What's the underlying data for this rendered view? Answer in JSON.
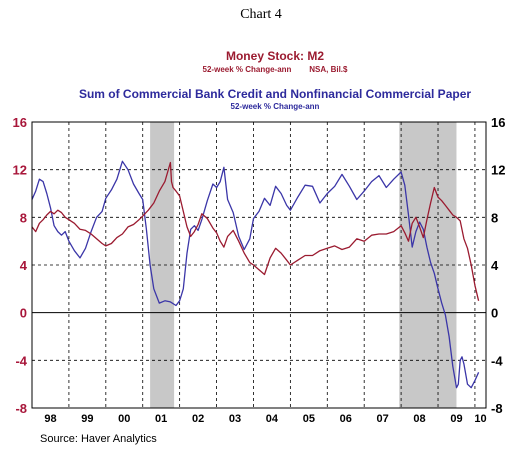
{
  "header": {
    "chart_number": "Chart 4",
    "series1_title": "Money Stock: M2",
    "series1_subtitle": "52-week % Change-ann        NSA, Bil.$",
    "series2_title": "Sum of Commercial Bank Credit and Nonfinancial Commercial Paper",
    "series2_subtitle": "52-week % Change-ann"
  },
  "footer": {
    "source": "Source: Haver Analytics"
  },
  "colors": {
    "m2": "#9b1b30",
    "credit": "#3b36a8",
    "recession": "#c8c8c8",
    "grid": "#000000"
  },
  "chart_data": {
    "type": "line",
    "xlabel": "",
    "ylabel": "",
    "ylim": [
      -8,
      16
    ],
    "xlim": [
      1998.0,
      2010.3
    ],
    "y_ticks_left": [
      "16",
      "12",
      "8",
      "4",
      "0",
      "-4",
      "-8"
    ],
    "y_ticks_right": [
      "16",
      "12",
      "8",
      "4",
      "0",
      "-4",
      "-8"
    ],
    "y_tick_values": [
      16,
      12,
      8,
      4,
      0,
      -4,
      -8
    ],
    "x_tick_labels": [
      "98",
      "99",
      "00",
      "01",
      "02",
      "03",
      "04",
      "05",
      "06",
      "07",
      "08",
      "09",
      "10"
    ],
    "grid": "vertical dashed at year starts, horizontal dashed at 4-unit steps",
    "zero_line": true,
    "recessions": [
      {
        "start": 2001.2,
        "end": 2001.85
      },
      {
        "start": 2007.95,
        "end": 2009.5
      }
    ],
    "series": [
      {
        "name": "Money Stock: M2",
        "axis": "left",
        "x": [
          1998.0,
          1998.1,
          1998.2,
          1998.3,
          1998.4,
          1998.5,
          1998.6,
          1998.7,
          1998.8,
          1998.9,
          1999.0,
          1999.15,
          1999.3,
          1999.45,
          1999.6,
          1999.75,
          1999.9,
          2000.0,
          2000.15,
          2000.3,
          2000.45,
          2000.6,
          2000.75,
          2000.9,
          2001.0,
          2001.15,
          2001.3,
          2001.45,
          2001.6,
          2001.75,
          2001.78,
          2001.82,
          2001.9,
          2002.0,
          2002.1,
          2002.2,
          2002.3,
          2002.4,
          2002.5,
          2002.6,
          2002.75,
          2002.9,
          2003.0,
          2003.1,
          2003.2,
          2003.3,
          2003.45,
          2003.6,
          2003.75,
          2003.9,
          2004.0,
          2004.15,
          2004.3,
          2004.45,
          2004.6,
          2004.75,
          2004.9,
          2005.0,
          2005.2,
          2005.4,
          2005.6,
          2005.8,
          2006.0,
          2006.2,
          2006.4,
          2006.6,
          2006.8,
          2007.0,
          2007.2,
          2007.4,
          2007.6,
          2007.8,
          2008.0,
          2008.1,
          2008.2,
          2008.3,
          2008.4,
          2008.5,
          2008.6,
          2008.7,
          2008.8,
          2008.9,
          2009.0,
          2009.1,
          2009.2,
          2009.3,
          2009.4,
          2009.5,
          2009.6,
          2009.7,
          2009.8,
          2009.9,
          2010.0,
          2010.1
        ],
        "values": [
          7.2,
          6.8,
          7.5,
          7.8,
          8.2,
          8.5,
          8.3,
          8.6,
          8.4,
          8.0,
          7.8,
          7.5,
          7.0,
          6.9,
          6.6,
          6.2,
          5.8,
          5.6,
          5.8,
          6.3,
          6.6,
          7.2,
          7.4,
          7.8,
          8.1,
          8.6,
          9.2,
          10.2,
          11.0,
          12.6,
          11.0,
          10.5,
          10.2,
          9.8,
          8.5,
          7.2,
          6.4,
          6.8,
          7.4,
          8.3,
          7.9,
          7.1,
          6.7,
          6.0,
          5.5,
          6.4,
          6.9,
          6.0,
          5.0,
          4.2,
          4.0,
          3.6,
          3.2,
          4.6,
          5.4,
          5.0,
          4.4,
          4.0,
          4.4,
          4.8,
          4.8,
          5.2,
          5.4,
          5.6,
          5.3,
          5.5,
          6.2,
          6.0,
          6.5,
          6.6,
          6.6,
          6.8,
          7.3,
          6.7,
          6.0,
          7.5,
          8.0,
          7.2,
          6.3,
          7.8,
          9.2,
          10.5,
          9.7,
          9.4,
          9.0,
          8.6,
          8.2,
          8.0,
          7.7,
          6.2,
          5.4,
          4.0,
          2.3,
          1.0
        ]
      },
      {
        "name": "Sum of Commercial Bank Credit and Nonfinancial Commercial Paper",
        "axis": "left",
        "x": [
          1998.0,
          1998.1,
          1998.2,
          1998.3,
          1998.4,
          1998.5,
          1998.6,
          1998.7,
          1998.8,
          1998.9,
          1999.0,
          1999.15,
          1999.3,
          1999.45,
          1999.6,
          1999.75,
          1999.9,
          2000.0,
          2000.15,
          2000.3,
          2000.45,
          2000.6,
          2000.75,
          2000.9,
          2001.0,
          2001.1,
          2001.2,
          2001.3,
          2001.45,
          2001.6,
          2001.75,
          2001.9,
          2002.0,
          2002.05,
          2002.1,
          2002.2,
          2002.3,
          2002.4,
          2002.5,
          2002.6,
          2002.75,
          2002.9,
          2003.0,
          2003.1,
          2003.2,
          2003.3,
          2003.45,
          2003.6,
          2003.75,
          2003.9,
          2004.0,
          2004.15,
          2004.3,
          2004.45,
          2004.6,
          2004.75,
          2004.9,
          2005.0,
          2005.2,
          2005.4,
          2005.6,
          2005.8,
          2006.0,
          2006.2,
          2006.4,
          2006.6,
          2006.8,
          2007.0,
          2007.2,
          2007.4,
          2007.6,
          2007.8,
          2008.0,
          2008.1,
          2008.2,
          2008.3,
          2008.4,
          2008.5,
          2008.6,
          2008.7,
          2008.8,
          2008.9,
          2009.0,
          2009.1,
          2009.2,
          2009.3,
          2009.4,
          2009.5,
          2009.55,
          2009.6,
          2009.65,
          2009.7,
          2009.8,
          2009.9,
          2010.0,
          2010.1
        ],
        "values": [
          9.5,
          10.2,
          11.2,
          11.0,
          10.0,
          8.8,
          7.3,
          6.8,
          6.5,
          6.8,
          6.0,
          5.2,
          4.6,
          5.4,
          6.8,
          8.0,
          8.5,
          9.6,
          10.3,
          11.2,
          12.7,
          12.0,
          10.8,
          10.0,
          9.5,
          7.0,
          4.0,
          2.0,
          0.8,
          1.0,
          0.9,
          0.6,
          1.0,
          1.5,
          2.0,
          5.0,
          7.0,
          7.3,
          6.9,
          7.8,
          9.4,
          10.8,
          10.5,
          11.0,
          12.2,
          9.5,
          8.4,
          6.4,
          5.3,
          6.2,
          7.9,
          8.5,
          9.6,
          9.0,
          10.6,
          10.0,
          9.0,
          8.6,
          9.7,
          10.7,
          10.6,
          9.2,
          10.0,
          10.6,
          11.6,
          10.6,
          9.5,
          10.2,
          11.0,
          11.5,
          10.5,
          11.2,
          11.8,
          10.7,
          8.2,
          5.5,
          6.8,
          7.6,
          7.0,
          5.5,
          4.2,
          3.3,
          2.0,
          0.8,
          -0.2,
          -2.0,
          -4.5,
          -6.3,
          -6.0,
          -4.0,
          -3.7,
          -4.3,
          -6.0,
          -6.3,
          -5.7,
          -5.0
        ]
      }
    ]
  }
}
